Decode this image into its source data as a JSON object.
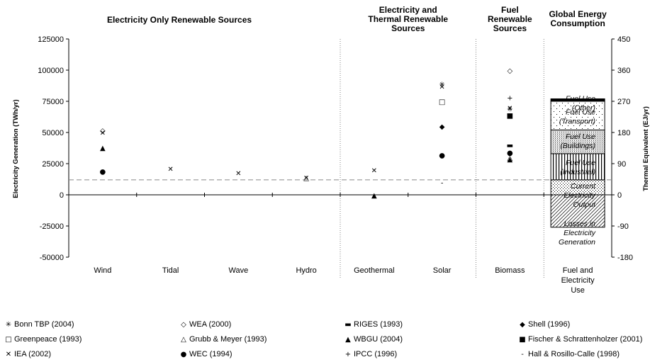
{
  "chart_data": {
    "type": "scatter",
    "headings": [
      "Electricity Only Renewable Sources",
      "Electricity and Thermal Renewable Sources",
      "Fuel Renewable Sources",
      "Global Energy Consumption"
    ],
    "categories": [
      "Wind",
      "Tidal",
      "Wave",
      "Hydro",
      "Geothermal",
      "Solar",
      "Biomass",
      "Fuel and Electricity Use"
    ],
    "ylabel": "Electricity Generation (TWh/yr)",
    "y2label": "Thermal Equivalent (EJ/yr)",
    "ylim": [
      -50000,
      125000
    ],
    "y_ticks": [
      "125000",
      "100000",
      "75000",
      "50000",
      "25000",
      "0",
      "-25000",
      "-50000"
    ],
    "y2lim": [
      -180,
      450
    ],
    "y2_ticks": [
      "450",
      "360",
      "270",
      "180",
      "90",
      "0",
      "-90",
      "-180"
    ],
    "reference_line": 12000,
    "series": [
      {
        "name": "Bonn TBP (2004)",
        "marker": "✳",
        "values": [
          null,
          null,
          null,
          null,
          null,
          89000,
          69000,
          null
        ]
      },
      {
        "name": "WEA (2000)",
        "marker": "◇",
        "values": [
          52000,
          null,
          null,
          null,
          null,
          null,
          100000,
          null
        ]
      },
      {
        "name": "RIGES (1993)",
        "marker": "▬",
        "values": [
          null,
          null,
          null,
          null,
          null,
          null,
          40000,
          null
        ]
      },
      {
        "name": "Shell (1996)",
        "marker": "◆",
        "values": [
          null,
          null,
          null,
          null,
          null,
          55000,
          null,
          null
        ]
      },
      {
        "name": "Greenpeace (1993)",
        "marker": "□",
        "values": [
          null,
          null,
          null,
          null,
          null,
          75000,
          null,
          null
        ]
      },
      {
        "name": "Grubb & Meyer (1993)",
        "marker": "△",
        "values": [
          null,
          null,
          null,
          14000,
          null,
          null,
          30000,
          null
        ]
      },
      {
        "name": "WBGU (2004)",
        "marker": "▲",
        "values": [
          38000,
          null,
          null,
          null,
          0,
          null,
          29000,
          null
        ]
      },
      {
        "name": "Fischer & Schrattenholzer (2001)",
        "marker": "■",
        "values": [
          null,
          null,
          null,
          null,
          null,
          null,
          64000,
          null
        ]
      },
      {
        "name": "IEA (2002)",
        "marker": "✕",
        "values": [
          50000,
          21000,
          17500,
          14000,
          20000,
          87000,
          70000,
          null
        ]
      },
      {
        "name": "WEC (1994)",
        "marker": "●",
        "values": [
          19000,
          null,
          null,
          null,
          null,
          32000,
          34000,
          null
        ]
      },
      {
        "name": "IPCC (1996)",
        "marker": "+",
        "values": [
          null,
          null,
          null,
          null,
          null,
          null,
          78000,
          null
        ]
      },
      {
        "name": "Hall & Rosillo-Calle (1998)",
        "marker": "-",
        "values": [
          null,
          null,
          null,
          null,
          null,
          10000,
          null,
          null
        ]
      }
    ],
    "consumption_stack": [
      {
        "label": "Losses in Electricity Generation",
        "from": -26000,
        "to": 0,
        "pattern": "diagonal"
      },
      {
        "label": "Current Electricity Output",
        "from": 0,
        "to": 12000,
        "pattern": "dots"
      },
      {
        "label": "Fuel Use (Industrial)",
        "from": 12000,
        "to": 33000,
        "pattern": "vertical"
      },
      {
        "label": "Fuel Use (Buildings)",
        "from": 33000,
        "to": 52000,
        "pattern": "dense"
      },
      {
        "label": "Fuel Use (Transport)",
        "from": 52000,
        "to": 75000,
        "pattern": "sparse"
      },
      {
        "label": "Fuel Use (Other)",
        "from": 75000,
        "to": 77000,
        "pattern": "solid"
      }
    ],
    "consumption_labels": [
      [
        "Fuel Use",
        "(Other)"
      ],
      [
        "Fuel Use",
        "(Transport)"
      ],
      [
        "Fuel Use",
        "(Buildings)"
      ],
      [
        "Fuel Use",
        "(Industrial)"
      ],
      [
        "Current",
        "Electricity",
        "Output"
      ],
      [
        "Losses in",
        "Electricity",
        "Generation"
      ]
    ],
    "grid": false,
    "legend_position": "bottom"
  }
}
